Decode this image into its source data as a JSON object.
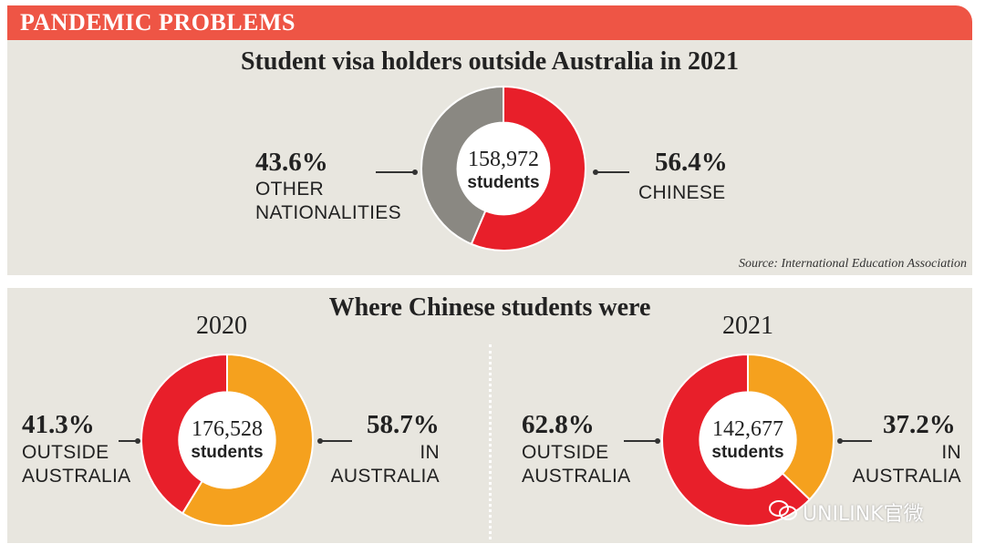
{
  "banner": {
    "title": "PANDEMIC PROBLEMS"
  },
  "top_panel": {
    "title": "Student visa holders outside Australia in 2021",
    "source": "Source: International Education Association"
  },
  "bottom_panel": {
    "title": "Where Chinese students were"
  },
  "watermark": {
    "text": "UNILINK官微",
    "icon": "wechat-icon"
  },
  "colors": {
    "red": "#e81f2a",
    "gray": "#8a8882",
    "orange": "#f5a11e",
    "banner": "#ee5545",
    "panel": "#e8e6df"
  },
  "chart_data": [
    {
      "type": "pie",
      "variant": "donut",
      "title": "Student visa holders outside Australia in 2021",
      "center": {
        "value": "158,972",
        "unit": "students"
      },
      "slices": [
        {
          "pct_label": "56.4%",
          "value": 56.4,
          "label": "CHINESE",
          "color": "#e81f2a"
        },
        {
          "pct_label": "43.6%",
          "value": 43.6,
          "label": "OTHER NATIONALITIES",
          "label_lines": [
            "OTHER",
            "NATIONALITIES"
          ],
          "color": "#8a8882"
        }
      ]
    },
    {
      "type": "pie",
      "variant": "donut",
      "year": "2020",
      "center": {
        "value": "176,528",
        "unit": "students"
      },
      "slices": [
        {
          "pct_label": "58.7%",
          "value": 58.7,
          "label": "IN AUSTRALIA",
          "label_lines": [
            "IN",
            "AUSTRALIA"
          ],
          "color": "#f5a11e"
        },
        {
          "pct_label": "41.3%",
          "value": 41.3,
          "label": "OUTSIDE AUSTRALIA",
          "label_lines": [
            "OUTSIDE",
            "AUSTRALIA"
          ],
          "color": "#e81f2a"
        }
      ]
    },
    {
      "type": "pie",
      "variant": "donut",
      "year": "2021",
      "center": {
        "value": "142,677",
        "unit": "students"
      },
      "slices": [
        {
          "pct_label": "37.2%",
          "value": 37.2,
          "label": "IN AUSTRALIA",
          "label_lines": [
            "IN",
            "AUSTRALIA"
          ],
          "color": "#f5a11e"
        },
        {
          "pct_label": "62.8%",
          "value": 62.8,
          "label": "OUTSIDE AUSTRALIA",
          "label_lines": [
            "OUTSIDE",
            "AUSTRALIA"
          ],
          "color": "#e81f2a"
        }
      ]
    }
  ]
}
